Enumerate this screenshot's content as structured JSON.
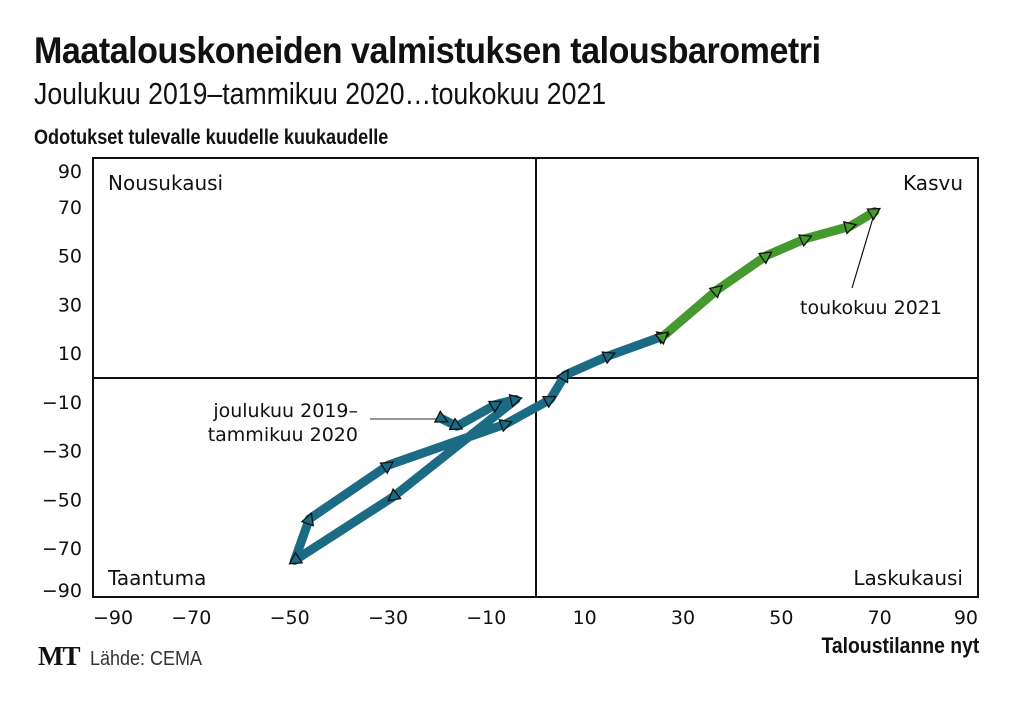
{
  "chart_data": {
    "type": "line",
    "title": "Maatalouskoneiden valmistuksen talousbarometri",
    "subtitle": "Joulukuu 2019–tammikuu 2020…toukokuu 2021",
    "ylabel": "Odotukset tulevalle kuudelle kuukaudelle",
    "xlabel": "Taloustilanne nyt",
    "xlim": [
      -90,
      90
    ],
    "ylim": [
      -90,
      90
    ],
    "xticks": [
      "−90",
      "−70",
      "−50",
      "−30",
      "−10",
      "10",
      "30",
      "50",
      "70",
      "90"
    ],
    "xtick_values": [
      -90,
      -70,
      -50,
      -30,
      -10,
      10,
      30,
      50,
      70,
      90
    ],
    "yticks": [
      "90",
      "70",
      "50",
      "30",
      "10",
      "−10",
      "−30",
      "−50",
      "−70",
      "−90"
    ],
    "ytick_values": [
      90,
      70,
      50,
      30,
      10,
      -10,
      -30,
      -50,
      -70,
      -90
    ],
    "quadrants": {
      "top_left": "Nousukausi",
      "top_right": "Kasvu",
      "bottom_left": "Taantuma",
      "bottom_right": "Laskukausi"
    },
    "series": [
      {
        "name": "blue",
        "color": "#1b6b85",
        "x": [
          -19,
          -16,
          -8,
          -4,
          -29,
          -49,
          -46,
          -30,
          -6,
          3,
          6,
          15,
          26
        ],
        "y": [
          -17,
          -20,
          -11,
          -9,
          -49,
          -75,
          -58,
          -36,
          -19,
          -9,
          1,
          9,
          17
        ]
      },
      {
        "name": "green",
        "color": "#45992e",
        "x": [
          26,
          37,
          47,
          55,
          64,
          69
        ],
        "y": [
          17,
          36,
          50,
          57,
          62,
          68
        ]
      }
    ],
    "annotations": {
      "start_line1": "joulukuu 2019–",
      "start_line2": "tammikuu 2020",
      "end": "toukokuu 2021"
    }
  },
  "footer": {
    "logo": "MT",
    "source": "Lähde: CEMA"
  }
}
